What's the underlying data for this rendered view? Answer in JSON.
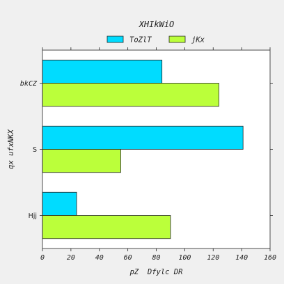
{
  "chart_data": {
    "type": "bar",
    "orientation": "horizontal",
    "title": "XHIkWiO",
    "xlabel": "pZ  Dfylc DR",
    "ylabel": "qx ufxNKX",
    "categories": [
      "bkCZ",
      "S",
      "Hjj"
    ],
    "series": [
      {
        "name": "ToZlT",
        "color": "#00dcff",
        "values": [
          84,
          141,
          24
        ]
      },
      {
        "name": "jKx",
        "color": "#bbff3a",
        "values": [
          124,
          55,
          90
        ]
      }
    ],
    "xlim": [
      0,
      160
    ],
    "xticks": [
      0,
      20,
      40,
      60,
      80,
      100,
      120,
      140,
      160
    ],
    "grid": false,
    "legend_position": "top-center"
  }
}
